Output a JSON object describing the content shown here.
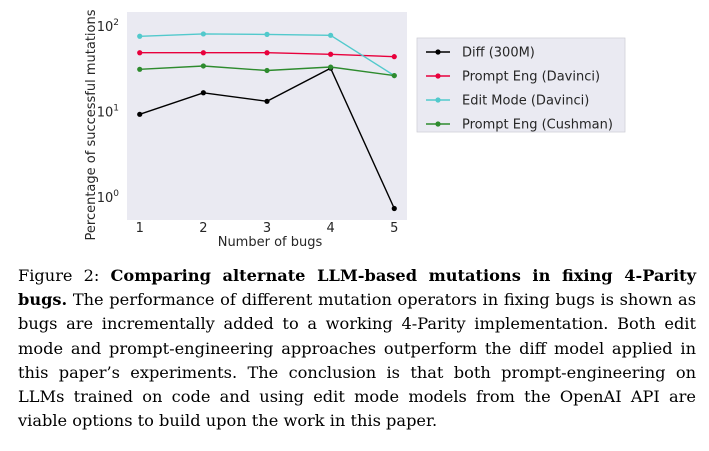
{
  "chart_data": {
    "type": "line",
    "xlabel": "Number of bugs",
    "ylabel": "Percentage of successful mutations",
    "yscale": "log",
    "x": [
      1,
      2,
      3,
      4,
      5
    ],
    "xticks": [
      "1",
      "2",
      "3",
      "4",
      "5"
    ],
    "yticks": [
      {
        "value": 1,
        "base": "10",
        "exp": "0"
      },
      {
        "value": 10,
        "base": "10",
        "exp": "1"
      },
      {
        "value": 100,
        "base": "10",
        "exp": "2"
      }
    ],
    "ylim": [
      0.55,
      150
    ],
    "xlim": [
      0.8,
      5.2
    ],
    "grid": false,
    "background": "#eaeaf2",
    "legend_position": "right",
    "series": [
      {
        "name": "Diff (300M)",
        "color": "#000000",
        "values": [
          9.5,
          17,
          13.5,
          33,
          0.75
        ]
      },
      {
        "name": "Prompt Eng (Davinci)",
        "color": "#e8003c",
        "values": [
          50,
          50,
          50,
          48,
          45
        ]
      },
      {
        "name": "Edit Mode (Davinci)",
        "color": "#52c9cc",
        "values": [
          78,
          83,
          82,
          80,
          27
        ]
      },
      {
        "name": "Prompt Eng (Cushman)",
        "color": "#2e8b2e",
        "values": [
          32,
          35,
          31,
          34,
          27
        ]
      }
    ]
  },
  "caption": {
    "label": "Figure 2:",
    "title": "Comparing alternate LLM-based mutations in fixing 4-Parity bugs.",
    "body": "The performance of different mutation operators in fixing bugs is shown as bugs are incrementally added to a working 4-Parity implementation. Both edit mode and prompt-engineering approaches outperform the diff model applied in this paper’s experiments. The conclusion is that both prompt-engineering on LLMs trained on code and using edit mode models from the OpenAI API are viable options to build upon the work in this paper."
  }
}
